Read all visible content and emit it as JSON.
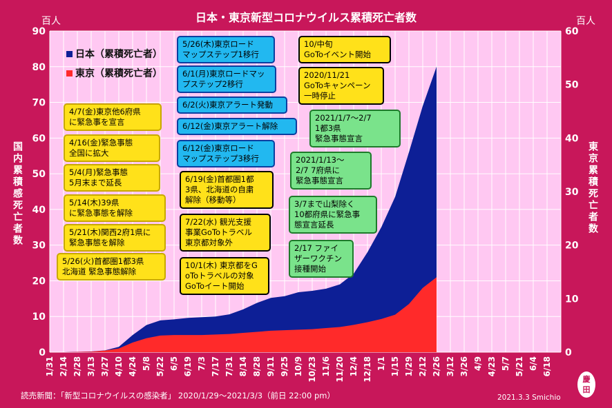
{
  "chart_data": {
    "type": "area",
    "title": "日本・東京新型コロナウイルス累積死亡者数",
    "left_unit": "百人",
    "right_unit": "百人",
    "left_axis_label": "国内累積感死亡者数",
    "right_axis_label": "東京累積死亡者数",
    "left_ylim": [
      0,
      90
    ],
    "right_ylim": [
      0,
      60
    ],
    "left_ticks": [
      "0",
      "10",
      "20",
      "30",
      "40",
      "50",
      "60",
      "70",
      "80",
      "90"
    ],
    "right_ticks": [
      "0",
      "10",
      "20",
      "30",
      "40",
      "50",
      "60"
    ],
    "x_ticks": [
      "1/31",
      "2/14",
      "2/28",
      "3/13",
      "3/27",
      "4/10",
      "4/24",
      "5/8",
      "5/22",
      "6/5",
      "6/19",
      "7/3",
      "7/17",
      "7/31",
      "8/14",
      "8/28",
      "9/11",
      "9/25",
      "10/9",
      "10/23",
      "11/6",
      "11/20",
      "12/4",
      "12/18",
      "1/1",
      "1/15",
      "1/29",
      "2/12",
      "2/26",
      "3/12",
      "3/26",
      "4/9",
      "4/23",
      "5/7",
      "5/21",
      "6/4",
      "6/18"
    ],
    "grid": true,
    "legend_position": "top-left",
    "series": [
      {
        "name": "日本（累積死亡者）",
        "axis": "left",
        "color": "#0d1f96",
        "points": [
          [
            0,
            0
          ],
          [
            1,
            0
          ],
          [
            2,
            0.1
          ],
          [
            3,
            0.2
          ],
          [
            4,
            0.5
          ],
          [
            5,
            1.5
          ],
          [
            6,
            4.8
          ],
          [
            7,
            7.6
          ],
          [
            8,
            8.9
          ],
          [
            9,
            9.2
          ],
          [
            10,
            9.6
          ],
          [
            11,
            9.8
          ],
          [
            12,
            10.0
          ],
          [
            13,
            10.6
          ],
          [
            14,
            12.0
          ],
          [
            15,
            13.8
          ],
          [
            16,
            15.2
          ],
          [
            17,
            15.7
          ],
          [
            18,
            16.8
          ],
          [
            19,
            17.2
          ],
          [
            20,
            17.8
          ],
          [
            21,
            19.0
          ],
          [
            22,
            22.0
          ],
          [
            23,
            28.0
          ],
          [
            24,
            35.0
          ],
          [
            25,
            43.5
          ],
          [
            26,
            56.0
          ],
          [
            27,
            69.0
          ],
          [
            28,
            80.0
          ]
        ]
      },
      {
        "name": "東京（累積死亡者）",
        "axis": "right",
        "color": "#ff2a2a",
        "points": [
          [
            0,
            0
          ],
          [
            1,
            0
          ],
          [
            2,
            0.05
          ],
          [
            3,
            0.1
          ],
          [
            4,
            0.3
          ],
          [
            5,
            0.7
          ],
          [
            6,
            1.8
          ],
          [
            7,
            2.6
          ],
          [
            8,
            3.1
          ],
          [
            9,
            3.2
          ],
          [
            10,
            3.2
          ],
          [
            11,
            3.2
          ],
          [
            12,
            3.3
          ],
          [
            13,
            3.4
          ],
          [
            14,
            3.6
          ],
          [
            15,
            3.8
          ],
          [
            16,
            4.0
          ],
          [
            17,
            4.1
          ],
          [
            18,
            4.2
          ],
          [
            19,
            4.3
          ],
          [
            20,
            4.5
          ],
          [
            21,
            4.7
          ],
          [
            22,
            5.1
          ],
          [
            23,
            5.6
          ],
          [
            24,
            6.2
          ],
          [
            25,
            7.0
          ],
          [
            26,
            9.0
          ],
          [
            27,
            12.0
          ],
          [
            28,
            14.0
          ]
        ]
      }
    ]
  },
  "annotations": [
    {
      "text": "4/7(金)東京他6府県\nに緊急事を宣言",
      "style": "ann-y"
    },
    {
      "text": "4/16(金)緊急事態\n全国に拡大",
      "style": "ann-y"
    },
    {
      "text": "5/4(月)緊急事態\n5月末まで延長",
      "style": "ann-y"
    },
    {
      "text": "5/14(木)39県\nに緊急事態を解除",
      "style": "ann-y"
    },
    {
      "text": "5/21(木)関西2府1県に\n緊急事態を解除",
      "style": "ann-y"
    },
    {
      "text": "5/26(火)首都圏1都3県\n北海道 緊急事態解除",
      "style": "ann-y"
    },
    {
      "text": "5/26(木)東京ロード\nマップステップ1移行",
      "style": "ann-b"
    },
    {
      "text": "6/1(月)東京ロードマッ\nプステップ2移行",
      "style": "ann-b"
    },
    {
      "text": "6/2(火)東京アラート発動",
      "style": "ann-b"
    },
    {
      "text": "6/12(金)東京アラート解除",
      "style": "ann-b"
    },
    {
      "text": "6/12(金)東京ロード\nマップステップ3移行",
      "style": "ann-b"
    },
    {
      "text": "6/19(金)首都圏1都\n3県、北海道の自粛\n解除（移動等）",
      "style": "ann-w"
    },
    {
      "text": "7/22(水) 観光支援\n事業GoToトラベル\n東京都対象外",
      "style": "ann-w"
    },
    {
      "text": "10/1(木) 東京都をG\noToトラベルの対象\nGoToイート開始",
      "style": "ann-w"
    },
    {
      "text": "10/中旬\nGoToイベント開始",
      "style": "ann-w"
    },
    {
      "text": "2020/11/21\nGoToキャンペーン\n一時停止",
      "style": "ann-w"
    },
    {
      "text": "2021/1/7～2/7\n1都3県\n緊急事態宣言",
      "style": "ann-g"
    },
    {
      "text": "2021/1/13～\n2/7 7府県に\n緊急事態宣言",
      "style": "ann-g"
    },
    {
      "text": "3/7まで山梨除く\n10都府県に緊急事\n態宣言延長",
      "style": "ann-g"
    },
    {
      "text": "2/17 ファイ\nザーワクチン\n接種開始",
      "style": "ann-g"
    }
  ],
  "source": "読売新聞：「新型コロナウイルスの感染者」 2020/1/29～2021/3/3（前日 22:00 pm）",
  "credit": "2021.3.3 Smichio",
  "stamp": {
    "line1": "慶",
    "line2": "田"
  }
}
